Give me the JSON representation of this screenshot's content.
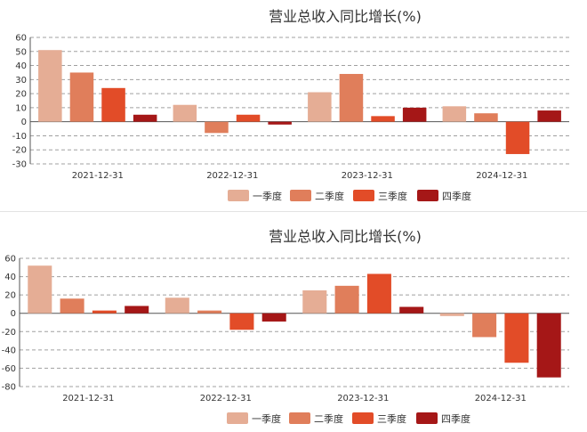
{
  "colors": {
    "series": [
      "#e5ad95",
      "#e07e5b",
      "#e24c28",
      "#a51717"
    ],
    "grid": "#a0a0a0",
    "axis": "#555555"
  },
  "chart_data": [
    {
      "type": "bar",
      "title": "营业总收入同比增长(%)",
      "categories": [
        "2021-12-31",
        "2022-12-31",
        "2023-12-31",
        "2024-12-31"
      ],
      "series": [
        {
          "name": "一季度",
          "values": [
            51,
            12,
            21,
            11
          ]
        },
        {
          "name": "二季度",
          "values": [
            35,
            -8,
            34,
            6
          ]
        },
        {
          "name": "三季度",
          "values": [
            24,
            5,
            4,
            -23
          ]
        },
        {
          "name": "四季度",
          "values": [
            5,
            -2,
            10,
            8
          ]
        }
      ],
      "ylim": [
        -30,
        60
      ],
      "yticks": [
        -30,
        -20,
        -10,
        0,
        10,
        20,
        30,
        40,
        50,
        60
      ],
      "grid": true,
      "legend": "bottom"
    },
    {
      "type": "bar",
      "title": "营业总收入同比增长(%)",
      "categories": [
        "2021-12-31",
        "2022-12-31",
        "2023-12-31",
        "2024-12-31"
      ],
      "series": [
        {
          "name": "一季度",
          "values": [
            52,
            17,
            25,
            -3
          ]
        },
        {
          "name": "二季度",
          "values": [
            16,
            3,
            30,
            -26
          ]
        },
        {
          "name": "三季度",
          "values": [
            3,
            -18,
            43,
            -54
          ]
        },
        {
          "name": "四季度",
          "values": [
            8,
            -9,
            7,
            -70
          ]
        }
      ],
      "ylim": [
        -80,
        60
      ],
      "yticks": [
        -80,
        -60,
        -40,
        -20,
        0,
        20,
        40,
        60
      ],
      "grid": true,
      "legend": "bottom"
    }
  ]
}
